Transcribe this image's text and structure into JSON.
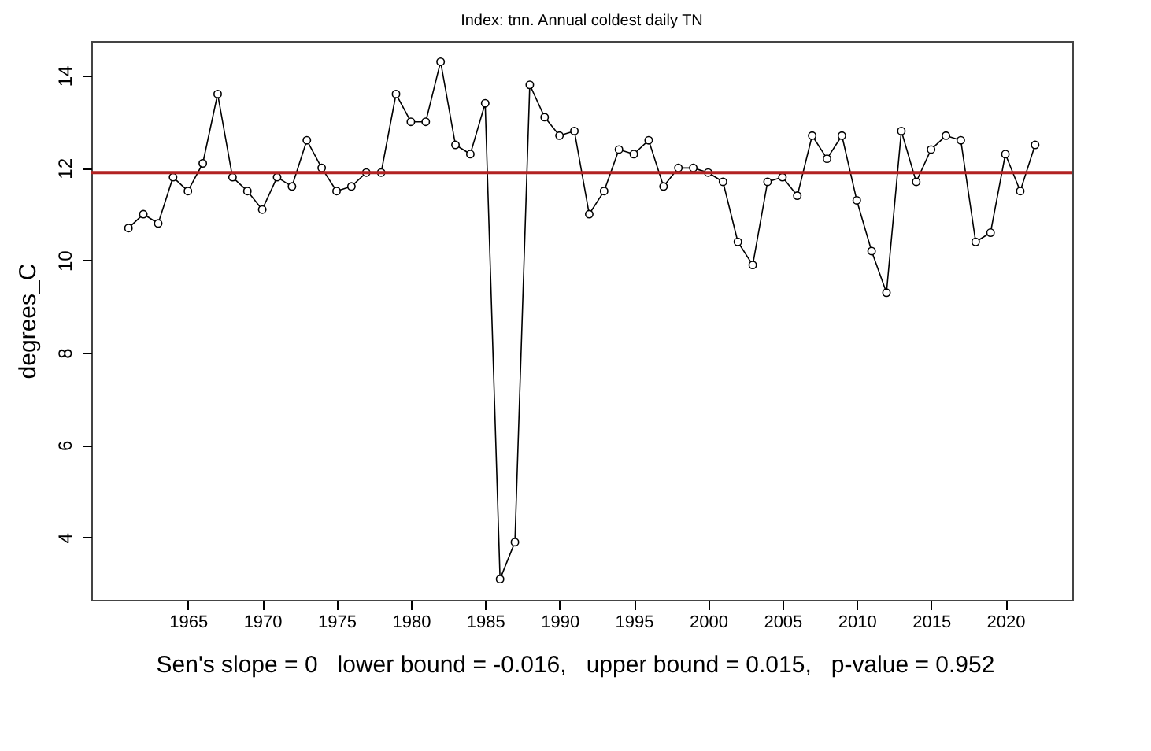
{
  "chart_data": {
    "type": "line",
    "title": "Index: tnn. Annual coldest daily TN",
    "ylabel": "degrees_C",
    "x": [
      1961,
      1962,
      1963,
      1964,
      1965,
      1966,
      1967,
      1968,
      1969,
      1970,
      1971,
      1972,
      1973,
      1974,
      1975,
      1976,
      1977,
      1978,
      1979,
      1980,
      1981,
      1982,
      1983,
      1984,
      1985,
      1986,
      1987,
      1988,
      1989,
      1990,
      1991,
      1992,
      1993,
      1994,
      1995,
      1996,
      1997,
      1998,
      1999,
      2000,
      2001,
      2002,
      2003,
      2004,
      2005,
      2006,
      2007,
      2008,
      2009,
      2010,
      2011,
      2012,
      2013,
      2014,
      2015,
      2016,
      2017,
      2018,
      2019,
      2020,
      2021,
      2022
    ],
    "series": [
      {
        "color": "#000000",
        "values": [
          10.7,
          11.0,
          10.8,
          11.8,
          11.5,
          12.1,
          13.6,
          11.8,
          11.5,
          11.1,
          11.8,
          11.6,
          12.6,
          12.0,
          11.5,
          11.6,
          11.9,
          11.9,
          13.6,
          13.0,
          13.0,
          14.3,
          12.5,
          12.3,
          13.4,
          3.1,
          3.9,
          13.8,
          13.1,
          12.7,
          12.8,
          11.0,
          11.5,
          12.4,
          12.3,
          12.6,
          11.6,
          12.0,
          12.0,
          11.9,
          11.7,
          10.4,
          9.9,
          11.7,
          11.8,
          11.4,
          12.7,
          12.2,
          12.7,
          11.3,
          10.2,
          9.3,
          12.8,
          11.7,
          12.4,
          12.7,
          12.6,
          10.4,
          10.6,
          12.3,
          11.5,
          12.5
        ]
      }
    ],
    "xlim": [
      1958.5,
      2024.5
    ],
    "xticks": [
      1965,
      1970,
      1975,
      1980,
      1985,
      1990,
      1995,
      2000,
      2005,
      2010,
      2015,
      2020
    ],
    "ylim": [
      2.65,
      14.75
    ],
    "yticks": [
      4,
      6,
      8,
      10,
      12,
      14
    ],
    "marker": "circle",
    "grid": false,
    "ref_lines": [
      {
        "axis": "y",
        "value": 11.9,
        "color": "#b22222"
      }
    ],
    "annotations": [
      "Sen's slope = 0   lower bound = -0.016,   upper bound = 0.015,   p-value = 0.952"
    ]
  }
}
